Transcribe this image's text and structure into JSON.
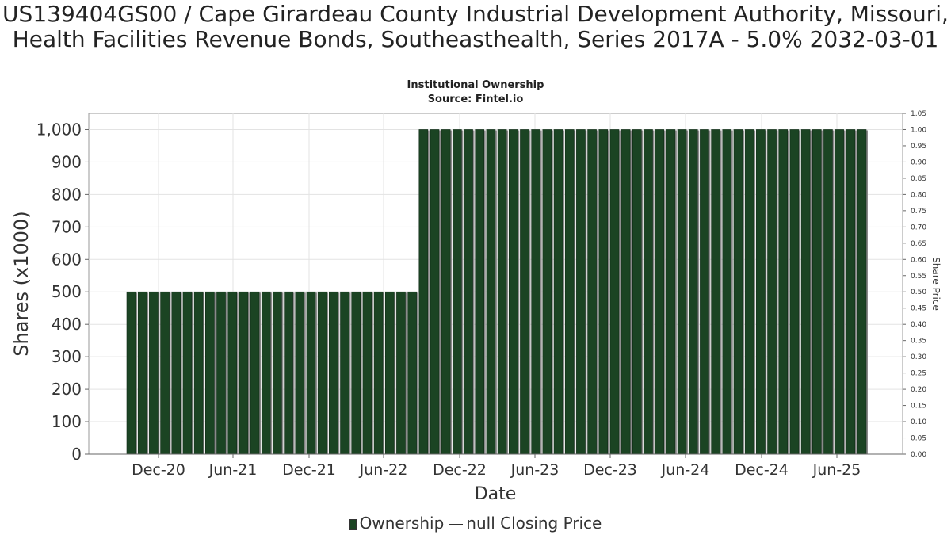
{
  "chart_data": {
    "type": "bar",
    "title": "US139404GS00 / Cape Girardeau County Industrial Development Authority, Missouri, Health Facilities Revenue Bonds, Southeasthealth, Series 2017A - 5.0% 2032-03-01",
    "subtitle": "Institutional Ownership",
    "source": "Source: Fintel.io",
    "xlabel": "Date",
    "ylabel": "Shares (x1000)",
    "y2label": "Share Price",
    "ylim": [
      0,
      1050
    ],
    "y2lim": [
      0,
      1.05
    ],
    "y_ticks": [
      "0",
      "100",
      "200",
      "300",
      "400",
      "500",
      "600",
      "700",
      "800",
      "900",
      "1,000"
    ],
    "y2_ticks": [
      "0.00",
      "0.05",
      "0.10",
      "0.15",
      "0.20",
      "0.25",
      "0.30",
      "0.35",
      "0.40",
      "0.45",
      "0.50",
      "0.55",
      "0.60",
      "0.65",
      "0.70",
      "0.75",
      "0.80",
      "0.85",
      "0.90",
      "0.95",
      "1.00",
      "1.05"
    ],
    "x_ticks": [
      "Dec-20",
      "Jun-21",
      "Dec-21",
      "Jun-22",
      "Dec-22",
      "Jun-23",
      "Dec-23",
      "Jun-24",
      "Dec-24",
      "Jun-25"
    ],
    "grid": true,
    "legend_position": "bottom",
    "series": [
      {
        "name": "Ownership",
        "color": "#1b4423",
        "values": [
          500,
          500,
          500,
          500,
          500,
          500,
          500,
          500,
          500,
          500,
          500,
          500,
          500,
          500,
          500,
          500,
          500,
          500,
          500,
          500,
          500,
          500,
          500,
          500,
          500,
          500,
          1000,
          1000,
          1000,
          1000,
          1000,
          1000,
          1000,
          1000,
          1000,
          1000,
          1000,
          1000,
          1000,
          1000,
          1000,
          1000,
          1000,
          1000,
          1000,
          1000,
          1000,
          1000,
          1000,
          1000,
          1000,
          1000,
          1000,
          1000,
          1000,
          1000,
          1000,
          1000,
          1000,
          1000,
          1000,
          1000,
          1000,
          1000,
          1000,
          1000
        ]
      },
      {
        "name": "null Closing Price",
        "color": "#333333",
        "values": []
      }
    ]
  }
}
